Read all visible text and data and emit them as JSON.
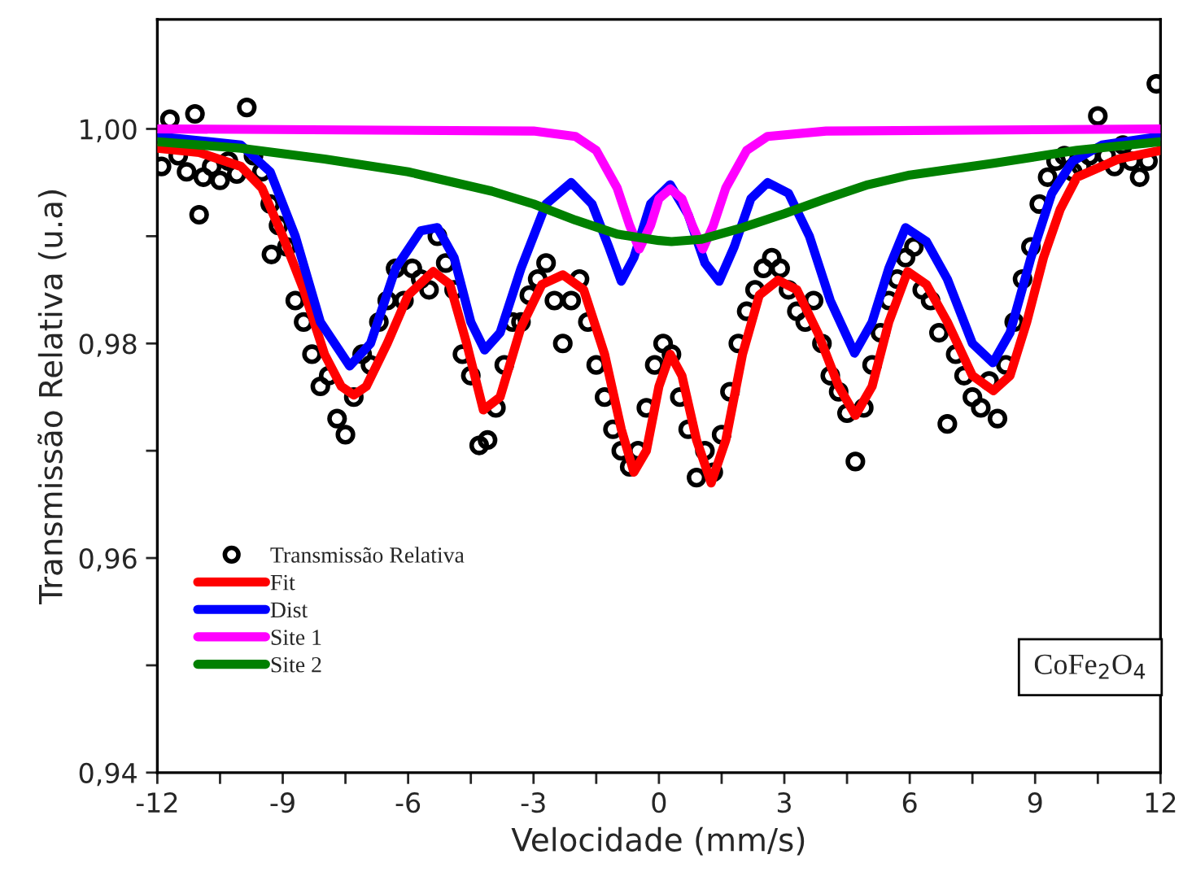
{
  "chart_data": {
    "type": "line",
    "xlabel": "Velocidade (mm/s)",
    "ylabel": "Transmissão Relativa (u.a)",
    "xlim": [
      -12,
      12
    ],
    "xticks": [
      -12,
      {
        "value": -10.5,
        "label": null
      },
      -9,
      {
        "value": -7.5,
        "label": null
      },
      -6,
      {
        "value": -4.5,
        "label": null
      },
      -3,
      {
        "value": -1.5,
        "label": null
      },
      0,
      {
        "value": 1.5,
        "label": null
      },
      3,
      {
        "value": 4.5,
        "label": null
      },
      6,
      {
        "value": 7.5,
        "label": null
      },
      9,
      {
        "value": 10.5,
        "label": null
      },
      12
    ],
    "ylim": [
      0.94,
      1.0102
    ],
    "yticks": [
      {
        "value": 0.94,
        "label": "0,94"
      },
      {
        "value": 0.95,
        "label": null
      },
      {
        "value": 0.96,
        "label": "0,96"
      },
      {
        "value": 0.97,
        "label": null
      },
      {
        "value": 0.98,
        "label": "0,98"
      },
      {
        "value": 0.99,
        "label": null
      },
      {
        "value": 1.0,
        "label": "1,00"
      }
    ],
    "grid": false,
    "legend": "bottom left",
    "annotations": [
      {
        "text": "CoFe$_{2}$O$_{4}$"
      }
    ],
    "series": [
      {
        "name": "Transmissão Relativa",
        "type": "scatter",
        "marker": "circle",
        "color": "#000000",
        "x": [
          -11.9,
          -11.7,
          -11.5,
          -11.3,
          -11.1,
          -11.0,
          -10.9,
          -10.7,
          -10.5,
          -10.3,
          -10.1,
          -9.86,
          -9.7,
          -9.5,
          -9.3,
          -9.27,
          -9.1,
          -8.9,
          -8.7,
          -8.5,
          -8.3,
          -8.1,
          -7.9,
          -7.7,
          -7.5,
          -7.3,
          -7.1,
          -6.9,
          -6.7,
          -6.5,
          -6.3,
          -6.1,
          -5.9,
          -5.7,
          -5.5,
          -5.3,
          -5.1,
          -4.9,
          -4.7,
          -4.5,
          -4.3,
          -4.1,
          -3.9,
          -3.7,
          -3.5,
          -3.3,
          -3.1,
          -2.9,
          -2.7,
          -2.5,
          -2.3,
          -2.1,
          -1.9,
          -1.7,
          -1.5,
          -1.3,
          -1.1,
          -0.9,
          -0.7,
          -0.5,
          -0.3,
          -0.1,
          0.1,
          0.3,
          0.5,
          0.7,
          0.9,
          1.1,
          1.3,
          1.5,
          1.7,
          1.9,
          2.1,
          2.3,
          2.5,
          2.7,
          2.9,
          3.1,
          3.3,
          3.5,
          3.7,
          3.9,
          4.1,
          4.3,
          4.5,
          4.7,
          4.9,
          5.1,
          5.3,
          5.5,
          5.7,
          5.9,
          6.1,
          6.3,
          6.5,
          6.7,
          6.9,
          7.1,
          7.3,
          7.5,
          7.7,
          7.9,
          8.1,
          8.3,
          8.5,
          8.7,
          8.9,
          9.1,
          9.3,
          9.5,
          9.7,
          9.9,
          10.1,
          10.3,
          10.5,
          10.7,
          10.9,
          11.1,
          11.3,
          11.5,
          11.7,
          11.9
        ],
        "values": [
          0.9965,
          1.0009,
          0.9975,
          0.996,
          1.0014,
          0.992,
          0.9955,
          0.9965,
          0.9952,
          0.997,
          0.9958,
          1.002,
          0.9975,
          0.996,
          0.993,
          0.9883,
          0.991,
          0.989,
          0.984,
          0.982,
          0.979,
          0.976,
          0.977,
          0.973,
          0.9715,
          0.975,
          0.979,
          0.978,
          0.982,
          0.984,
          0.987,
          0.984,
          0.987,
          0.986,
          0.985,
          0.99,
          0.9875,
          0.985,
          0.979,
          0.977,
          0.9705,
          0.971,
          0.974,
          0.978,
          0.982,
          0.982,
          0.9845,
          0.986,
          0.9875,
          0.984,
          0.98,
          0.984,
          0.986,
          0.982,
          0.978,
          0.975,
          0.972,
          0.97,
          0.9685,
          0.97,
          0.974,
          0.978,
          0.98,
          0.979,
          0.975,
          0.972,
          0.9675,
          0.97,
          0.968,
          0.9715,
          0.9755,
          0.98,
          0.983,
          0.985,
          0.987,
          0.988,
          0.987,
          0.985,
          0.983,
          0.982,
          0.984,
          0.98,
          0.977,
          0.9755,
          0.9735,
          0.969,
          0.974,
          0.978,
          0.981,
          0.984,
          0.986,
          0.988,
          0.989,
          0.985,
          0.984,
          0.981,
          0.9725,
          0.979,
          0.977,
          0.975,
          0.974,
          0.9765,
          0.973,
          0.978,
          0.982,
          0.986,
          0.989,
          0.993,
          0.9955,
          0.997,
          0.9975,
          0.996,
          0.9965,
          0.9975,
          1.0012,
          0.9975,
          0.9965,
          0.9985,
          0.997,
          0.9955,
          0.997,
          1.0042
        ]
      },
      {
        "name": "Fit",
        "color": "#ff0000",
        "x": [
          -12,
          -11,
          -10,
          -9.5,
          -9,
          -8.5,
          -8,
          -7.6,
          -7.3,
          -7,
          -6.5,
          -6,
          -5.4,
          -5,
          -4.6,
          -4.2,
          -3.8,
          -3.3,
          -2.8,
          -2.3,
          -1.8,
          -1.3,
          -0.9,
          -0.6,
          -0.3,
          0,
          0.27,
          0.55,
          0.9,
          1.25,
          1.6,
          2.0,
          2.4,
          2.85,
          3.3,
          3.8,
          4.3,
          4.7,
          5.1,
          5.5,
          5.95,
          6.4,
          6.9,
          7.5,
          8.0,
          8.4,
          8.8,
          9.2,
          9.6,
          10,
          11,
          12
        ],
        "values": [
          0.9982,
          0.9978,
          0.9965,
          0.9945,
          0.99,
          0.985,
          0.979,
          0.976,
          0.9752,
          0.976,
          0.98,
          0.9845,
          0.9867,
          0.9855,
          0.98,
          0.9738,
          0.975,
          0.9815,
          0.9855,
          0.9864,
          0.985,
          0.979,
          0.972,
          0.968,
          0.97,
          0.976,
          0.979,
          0.977,
          0.971,
          0.967,
          0.971,
          0.979,
          0.9845,
          0.9859,
          0.985,
          0.981,
          0.976,
          0.9733,
          0.976,
          0.982,
          0.9867,
          0.9855,
          0.982,
          0.977,
          0.9756,
          0.977,
          0.982,
          0.988,
          0.9925,
          0.9955,
          0.9972,
          0.998
        ]
      },
      {
        "name": "Dist",
        "color": "#0000ff",
        "x": [
          -12,
          -10,
          -9.3,
          -8.7,
          -8.1,
          -7.4,
          -6.9,
          -6.3,
          -5.7,
          -5.3,
          -4.9,
          -4.5,
          -4.17,
          -3.8,
          -3.3,
          -2.7,
          -2.1,
          -1.6,
          -1.2,
          -0.9,
          -0.6,
          -0.2,
          0.27,
          0.7,
          1.1,
          1.44,
          1.8,
          2.2,
          2.6,
          3.1,
          3.6,
          4.1,
          4.68,
          5.1,
          5.5,
          5.9,
          6.4,
          6.9,
          7.5,
          7.99,
          8.4,
          8.9,
          9.4,
          9.9,
          10.6,
          12
        ],
        "values": [
          0.9993,
          0.9985,
          0.996,
          0.99,
          0.982,
          0.9779,
          0.98,
          0.987,
          0.9905,
          0.9908,
          0.988,
          0.982,
          0.9794,
          0.981,
          0.987,
          0.993,
          0.995,
          0.993,
          0.989,
          0.9858,
          0.988,
          0.993,
          0.9948,
          0.992,
          0.9875,
          0.9858,
          0.989,
          0.9935,
          0.995,
          0.994,
          0.99,
          0.984,
          0.9791,
          0.982,
          0.987,
          0.9908,
          0.9895,
          0.986,
          0.98,
          0.9782,
          0.981,
          0.988,
          0.994,
          0.997,
          0.9985,
          0.9993
        ]
      },
      {
        "name": "Site 1",
        "color": "#ff00ff",
        "x": [
          -12,
          -3,
          -2,
          -1.5,
          -1,
          -0.7,
          -0.47,
          -0.2,
          0,
          0.27,
          0.55,
          0.8,
          1.05,
          1.3,
          1.6,
          2.1,
          2.6,
          4,
          12
        ],
        "values": [
          1.0,
          0.9998,
          0.9993,
          0.998,
          0.9945,
          0.991,
          0.9888,
          0.991,
          0.9935,
          0.9944,
          0.9935,
          0.991,
          0.9888,
          0.991,
          0.9945,
          0.998,
          0.9993,
          0.9998,
          1.0
        ]
      },
      {
        "name": "Site 2",
        "color": "#008000",
        "x": [
          -12,
          -10,
          -8,
          -6,
          -4,
          -3,
          -2,
          -1,
          0,
          0.3,
          1,
          2,
          3,
          4,
          5,
          6,
          8,
          10,
          12
        ],
        "values": [
          0.9988,
          0.9982,
          0.9972,
          0.996,
          0.9942,
          0.993,
          0.9915,
          0.9902,
          0.9896,
          0.9895,
          0.9897,
          0.9908,
          0.9921,
          0.9935,
          0.9948,
          0.9957,
          0.9968,
          0.998,
          0.9988
        ]
      }
    ]
  }
}
